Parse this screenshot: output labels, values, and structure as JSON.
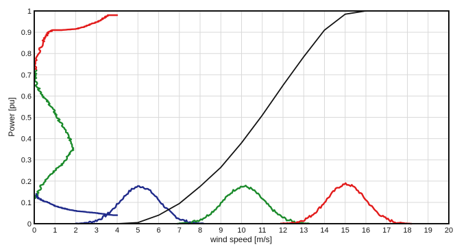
{
  "chart_data": {
    "type": "line",
    "xlabel": "wind speed [m/s]",
    "ylabel": "Power [pu]",
    "xlim": [
      0,
      20
    ],
    "ylim": [
      0,
      1
    ],
    "xticks": [
      "0",
      "1",
      "2",
      "3",
      "4",
      "5",
      "6",
      "7",
      "8",
      "9",
      "10",
      "11",
      "12",
      "13",
      "14",
      "15",
      "16",
      "17",
      "18",
      "19",
      "20"
    ],
    "yticks": [
      "0",
      "0.1",
      "0.2",
      "0.3",
      "0.4",
      "0.5",
      "0.6",
      "0.7",
      "0.8",
      "0.9",
      "1"
    ],
    "grid": true,
    "power_curve": {
      "color": "#111111",
      "x": [
        3,
        4,
        5,
        6,
        7,
        8,
        9,
        10,
        11,
        12,
        13,
        14,
        15,
        16,
        20
      ],
      "y": [
        0,
        0,
        0.005,
        0.04,
        0.095,
        0.175,
        0.265,
        0.38,
        0.51,
        0.65,
        0.785,
        0.91,
        0.985,
        1.0,
        1.0
      ]
    },
    "distributions": [
      {
        "color": "#1f2a8a",
        "mean": 5.1,
        "sigma": 0.95,
        "peak": 0.175,
        "start": 2.0,
        "end": 8.2
      },
      {
        "color": "#1a8a2a",
        "mean": 10.1,
        "sigma": 1.0,
        "peak": 0.175,
        "start": 6.9,
        "end": 13.3
      },
      {
        "color": "#e21a1a",
        "mean": 15.05,
        "sigma": 0.95,
        "peak": 0.185,
        "start": 11.9,
        "end": 18.2
      }
    ],
    "power_output_curves": [
      {
        "color": "#e21a1a",
        "x": [
          0.1,
          0.05,
          0.2,
          0.4,
          0.55,
          0.7,
          0.8,
          0.9,
          1.3,
          2.0,
          2.4,
          2.8,
          3.1,
          3.4,
          3.55,
          3.7,
          4.0
        ],
        "y": [
          0.72,
          0.75,
          0.8,
          0.85,
          0.88,
          0.9,
          0.905,
          0.91,
          0.91,
          0.915,
          0.925,
          0.94,
          0.95,
          0.97,
          0.98,
          0.98,
          0.98
        ]
      },
      {
        "color": "#1a8a2a",
        "x": [
          0.05,
          0.05,
          0.12,
          0.3,
          0.5,
          0.75,
          0.95,
          1.1,
          1.3,
          1.55,
          1.7,
          1.85,
          1.9,
          1.65,
          1.35,
          1.0,
          0.65,
          0.35,
          0.15,
          0.05
        ],
        "y": [
          0.72,
          0.69,
          0.65,
          0.62,
          0.59,
          0.56,
          0.53,
          0.5,
          0.47,
          0.43,
          0.4,
          0.37,
          0.35,
          0.32,
          0.28,
          0.25,
          0.22,
          0.18,
          0.14,
          0.12
        ]
      },
      {
        "color": "#1f2a8a",
        "x": [
          0.05,
          0.2,
          0.5,
          0.8,
          1.1,
          1.5,
          2.0,
          2.5,
          3.0,
          3.4,
          3.8,
          4.0
        ],
        "y": [
          0.14,
          0.12,
          0.105,
          0.095,
          0.08,
          0.07,
          0.06,
          0.055,
          0.05,
          0.045,
          0.04,
          0.04
        ]
      }
    ]
  }
}
